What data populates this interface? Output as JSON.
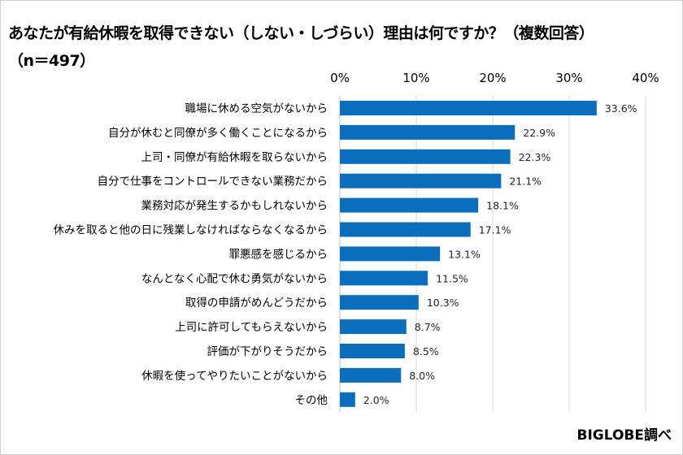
{
  "chart_data": {
    "type": "bar",
    "orientation": "horizontal",
    "title": "あなたが有給休暇を取得できない（しない・しづらい）理由は何ですか？（複数回答）",
    "subtitle": "（n＝497）",
    "categories": [
      "職場に休める空気がないから",
      "自分が休むと同僚が多く働くことになるから",
      "上司・同僚が有給休暇を取らないから",
      "自分で仕事をコントロールできない業務だから",
      "業務対応が発生するかもしれないから",
      "休みを取ると他の日に残業しなければならなくなるから",
      "罪悪感を感じるから",
      "なんとなく心配で休む勇気がないから",
      "取得の申請がめんどうだから",
      "上司に許可してもらえないから",
      "評価が下がりそうだから",
      "休暇を使ってやりたいことがないから",
      "その他"
    ],
    "values": [
      33.6,
      22.9,
      22.3,
      21.1,
      18.1,
      17.1,
      13.1,
      11.5,
      10.3,
      8.7,
      8.5,
      8.0,
      2.0
    ],
    "data_labels": [
      "33.6%",
      "22.9%",
      "22.3%",
      "21.1%",
      "18.1%",
      "17.1%",
      "13.1%",
      "11.5%",
      "10.3%",
      "8.7%",
      "8.5%",
      "8.0%",
      "2.0%"
    ],
    "xlim": [
      0,
      40
    ],
    "x_ticks": [
      0,
      10,
      20,
      30,
      40
    ],
    "x_tick_labels": [
      "0%",
      "10%",
      "20%",
      "30%",
      "40%"
    ],
    "x_axis_position": "top",
    "grid": true,
    "bar_color": "#0a6ebd",
    "grid_color": "#d9d9d9"
  },
  "source": "BIGLOBE調べ"
}
